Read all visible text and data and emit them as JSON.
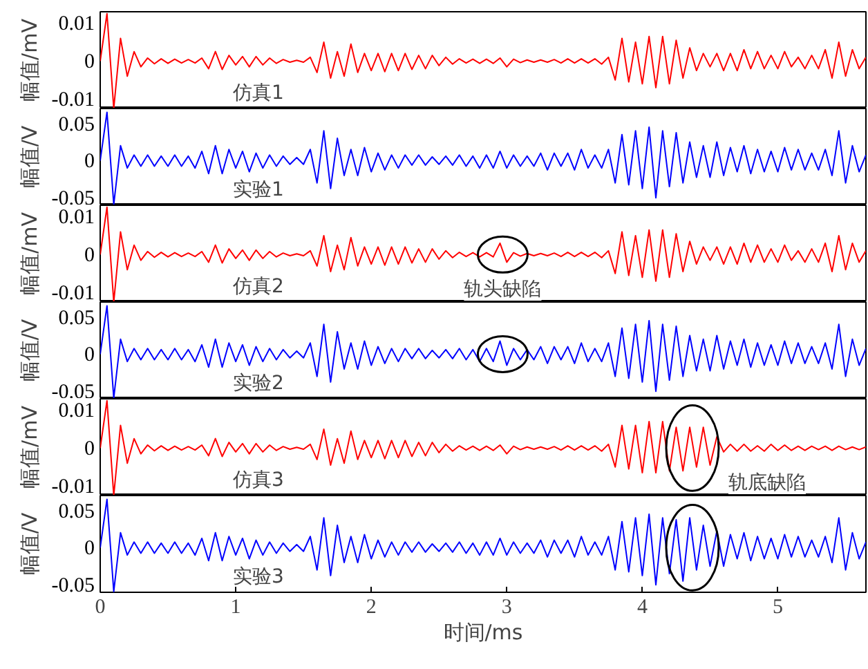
{
  "chart_data": [
    {
      "type": "line",
      "ylabel": "幅值/mV",
      "xlim": [
        0,
        5.65
      ],
      "ylim": [
        -0.0125,
        0.013
      ],
      "yticks": [
        -0.01,
        0,
        0.01
      ],
      "tick_labels": "y",
      "annotations": [
        "仿真1"
      ],
      "x": [
        0,
        0.05,
        0.1,
        0.15,
        0.2,
        0.25,
        0.3,
        0.35,
        0.4,
        0.45,
        0.5,
        0.55,
        0.6,
        0.65,
        0.7,
        0.75,
        0.8,
        0.85,
        0.9,
        0.95,
        1,
        1.05,
        1.1,
        1.15,
        1.2,
        1.25,
        1.3,
        1.35,
        1.4,
        1.45,
        1.5,
        1.55,
        1.6,
        1.65,
        1.7,
        1.75,
        1.8,
        1.85,
        1.9,
        1.95,
        2,
        2.05,
        2.1,
        2.15,
        2.2,
        2.25,
        2.3,
        2.35,
        2.4,
        2.45,
        2.5,
        2.55,
        2.6,
        2.65,
        2.7,
        2.75,
        2.8,
        2.85,
        2.9,
        2.95,
        3,
        3.05,
        3.1,
        3.15,
        3.2,
        3.25,
        3.3,
        3.35,
        3.4,
        3.45,
        3.5,
        3.55,
        3.6,
        3.65,
        3.7,
        3.75,
        3.8,
        3.85,
        3.9,
        3.95,
        4,
        4.05,
        4.1,
        4.15,
        4.2,
        4.25,
        4.3,
        4.35,
        4.4,
        4.45,
        4.5,
        4.55,
        4.6,
        4.65,
        4.7,
        4.75,
        4.8,
        4.85,
        4.9,
        4.95,
        5,
        5.05,
        5.1,
        5.15,
        5.2,
        5.25,
        5.3,
        5.35,
        5.4,
        5.45,
        5.5,
        5.55,
        5.6,
        5.65
      ],
      "series": [
        {
          "color": "#ff0000",
          "values": [
            0,
            0.0125,
            -0.0125,
            0.006,
            -0.004,
            0.0025,
            -0.0015,
            0.0008,
            -0.0007,
            0.0006,
            -0.0006,
            0.0005,
            -0.0005,
            0.0004,
            -0.0005,
            0.0008,
            -0.002,
            0.0025,
            -0.0022,
            0.0015,
            -0.001,
            0.0012,
            -0.0015,
            0.0012,
            -0.001,
            0.0008,
            -0.0006,
            0.0004,
            -0.0003,
            0.0002,
            -0.0003,
            0.001,
            -0.003,
            0.005,
            -0.0045,
            0.0025,
            -0.004,
            0.0045,
            -0.003,
            0.002,
            -0.0025,
            0.002,
            -0.0028,
            0.002,
            -0.0025,
            0.002,
            -0.0022,
            0.0015,
            -0.002,
            0.0015,
            -0.0012,
            0.001,
            -0.0008,
            0.0006,
            -0.0005,
            0.0005,
            -0.0006,
            0.0005,
            -0.0006,
            0.0008,
            -0.0015,
            0.0005,
            -0.0004,
            0.0003,
            -0.0003,
            0.0003,
            -0.0003,
            0.0004,
            -0.0005,
            0.0006,
            -0.0005,
            0.0006,
            -0.0005,
            0.0006,
            -0.0008,
            0.001,
            -0.005,
            0.006,
            -0.0055,
            0.005,
            -0.006,
            0.0065,
            -0.007,
            0.0065,
            -0.006,
            0.0055,
            -0.0045,
            0.0035,
            -0.0025,
            0.002,
            -0.0015,
            0.002,
            -0.0025,
            0.002,
            -0.0025,
            0.003,
            -0.002,
            0.0025,
            -0.002,
            0.0015,
            -0.002,
            0.0025,
            -0.0015,
            0.001,
            -0.002,
            0.0015,
            -0.002,
            0.003,
            -0.0045,
            0.005,
            -0.004,
            0.003,
            -0.002,
            0.001
          ]
        }
      ]
    },
    {
      "type": "line",
      "ylabel": "幅值/V",
      "xlim": [
        0,
        5.65
      ],
      "ylim": [
        -0.06,
        0.07
      ],
      "yticks": [
        -0.05,
        0,
        0.05
      ],
      "tick_labels": "y",
      "annotations": [
        "实验1"
      ],
      "x": [
        0,
        0.05,
        0.1,
        0.15,
        0.2,
        0.25,
        0.3,
        0.35,
        0.4,
        0.45,
        0.5,
        0.55,
        0.6,
        0.65,
        0.7,
        0.75,
        0.8,
        0.85,
        0.9,
        0.95,
        1,
        1.05,
        1.1,
        1.15,
        1.2,
        1.25,
        1.3,
        1.35,
        1.4,
        1.45,
        1.5,
        1.55,
        1.6,
        1.65,
        1.7,
        1.75,
        1.8,
        1.85,
        1.9,
        1.95,
        2,
        2.05,
        2.1,
        2.15,
        2.2,
        2.25,
        2.3,
        2.35,
        2.4,
        2.45,
        2.5,
        2.55,
        2.6,
        2.65,
        2.7,
        2.75,
        2.8,
        2.85,
        2.9,
        2.95,
        3,
        3.05,
        3.1,
        3.15,
        3.2,
        3.25,
        3.3,
        3.35,
        3.4,
        3.45,
        3.5,
        3.55,
        3.6,
        3.65,
        3.7,
        3.75,
        3.8,
        3.85,
        3.9,
        3.95,
        4,
        4.05,
        4.1,
        4.15,
        4.2,
        4.25,
        4.3,
        4.35,
        4.4,
        4.45,
        4.5,
        4.55,
        4.6,
        4.65,
        4.7,
        4.75,
        4.8,
        4.85,
        4.9,
        4.95,
        5,
        5.05,
        5.1,
        5.15,
        5.2,
        5.25,
        5.3,
        5.35,
        5.4,
        5.45,
        5.5,
        5.55,
        5.6,
        5.65
      ],
      "series": [
        {
          "color": "#0000ff",
          "values": [
            0,
            0.065,
            -0.059,
            0.02,
            -0.01,
            0.0075,
            -0.0075,
            0.0075,
            -0.0075,
            0.006,
            -0.0075,
            0.0075,
            -0.0075,
            0.006,
            -0.01,
            0.0125,
            -0.0175,
            0.02,
            -0.0175,
            0.015,
            -0.01,
            0.0125,
            -0.015,
            0.01,
            -0.01,
            0.0075,
            -0.0075,
            0.006,
            -0.005,
            0.004,
            -0.005,
            0.015,
            -0.03,
            0.04,
            -0.0375,
            0.03,
            -0.02,
            0.015,
            -0.02,
            0.0175,
            -0.015,
            0.01,
            -0.0125,
            0.0075,
            -0.01,
            0.0075,
            -0.006,
            0.0075,
            -0.006,
            0.005,
            -0.005,
            0.006,
            -0.006,
            0.0075,
            -0.0075,
            0.006,
            -0.01,
            0.0075,
            -0.01,
            0.0125,
            -0.01,
            0.0075,
            -0.0075,
            0.006,
            -0.0075,
            0.01,
            -0.0125,
            0.01,
            -0.0075,
            0.01,
            -0.0125,
            0.015,
            -0.01,
            0.0075,
            -0.01,
            0.015,
            -0.03,
            0.035,
            -0.0325,
            0.04,
            -0.0375,
            0.045,
            -0.05,
            0.04,
            -0.035,
            0.0375,
            -0.03,
            0.025,
            -0.0225,
            0.02,
            -0.0225,
            0.025,
            -0.02,
            0.0175,
            -0.015,
            0.02,
            -0.0175,
            0.015,
            -0.015,
            0.0125,
            -0.015,
            0.0175,
            -0.0125,
            0.015,
            -0.0125,
            0.01,
            -0.0125,
            0.015,
            -0.02,
            0.04,
            -0.03,
            0.02,
            -0.015,
            0.0075
          ]
        }
      ]
    },
    {
      "type": "line",
      "ylabel": "幅值/mV",
      "xlim": [
        0,
        5.65
      ],
      "ylim": [
        -0.0125,
        0.013
      ],
      "yticks": [
        -0.01,
        0,
        0.01
      ],
      "tick_labels": "y",
      "annotations": [
        "仿真2",
        {
          "text": "轨头缺陷",
          "x": 2.97,
          "y": 0
        }
      ],
      "x": [
        0,
        0.05,
        0.1,
        0.15,
        0.2,
        0.25,
        0.3,
        0.35,
        0.4,
        0.45,
        0.5,
        0.55,
        0.6,
        0.65,
        0.7,
        0.75,
        0.8,
        0.85,
        0.9,
        0.95,
        1,
        1.05,
        1.1,
        1.15,
        1.2,
        1.25,
        1.3,
        1.35,
        1.4,
        1.45,
        1.5,
        1.55,
        1.6,
        1.65,
        1.7,
        1.75,
        1.8,
        1.85,
        1.9,
        1.95,
        2,
        2.05,
        2.1,
        2.15,
        2.2,
        2.25,
        2.3,
        2.35,
        2.4,
        2.45,
        2.5,
        2.55,
        2.6,
        2.65,
        2.7,
        2.75,
        2.8,
        2.85,
        2.9,
        2.95,
        3,
        3.05,
        3.1,
        3.15,
        3.2,
        3.25,
        3.3,
        3.35,
        3.4,
        3.45,
        3.5,
        3.55,
        3.6,
        3.65,
        3.7,
        3.75,
        3.8,
        3.85,
        3.9,
        3.95,
        4,
        4.05,
        4.1,
        4.15,
        4.2,
        4.25,
        4.3,
        4.35,
        4.4,
        4.45,
        4.5,
        4.55,
        4.6,
        4.65,
        4.7,
        4.75,
        4.8,
        4.85,
        4.9,
        4.95,
        5,
        5.05,
        5.1,
        5.15,
        5.2,
        5.25,
        5.3,
        5.35,
        5.4,
        5.45,
        5.5,
        5.55,
        5.6,
        5.65
      ],
      "series": [
        {
          "color": "#ff0000",
          "values": [
            0,
            0.0125,
            -0.0125,
            0.006,
            -0.004,
            0.0025,
            -0.0015,
            0.0008,
            -0.0007,
            0.0006,
            -0.0006,
            0.0005,
            -0.0005,
            0.0004,
            -0.0005,
            0.0008,
            -0.002,
            0.0025,
            -0.0022,
            0.0015,
            -0.001,
            0.0012,
            -0.0015,
            0.0012,
            -0.001,
            0.0008,
            -0.0006,
            0.0004,
            -0.0003,
            0.0002,
            -0.0003,
            0.001,
            -0.003,
            0.005,
            -0.0045,
            0.0025,
            -0.004,
            0.0045,
            -0.003,
            0.002,
            -0.0025,
            0.002,
            -0.0028,
            0.002,
            -0.0025,
            0.002,
            -0.0022,
            0.0015,
            -0.002,
            0.0015,
            -0.0012,
            0.001,
            -0.0008,
            0.0006,
            -0.0005,
            0.0005,
            -0.0006,
            0.0005,
            -0.0006,
            0.003,
            -0.002,
            0.0005,
            -0.0004,
            0.0003,
            -0.0003,
            0.0003,
            -0.0003,
            0.0004,
            -0.0005,
            0.0006,
            -0.0005,
            0.0006,
            -0.0005,
            0.0006,
            -0.0008,
            0.001,
            -0.005,
            0.006,
            -0.0055,
            0.005,
            -0.006,
            0.0065,
            -0.007,
            0.0065,
            -0.006,
            0.0055,
            -0.0045,
            0.0035,
            -0.0025,
            0.002,
            -0.0015,
            0.002,
            -0.0025,
            0.002,
            -0.0025,
            0.003,
            -0.002,
            0.0025,
            -0.002,
            0.0015,
            -0.002,
            0.0025,
            -0.0015,
            0.001,
            -0.002,
            0.0015,
            -0.002,
            0.003,
            -0.0045,
            0.005,
            -0.004,
            0.003,
            -0.002,
            0.001
          ]
        }
      ]
    },
    {
      "type": "line",
      "ylabel": "幅值/V",
      "xlim": [
        0,
        5.65
      ],
      "ylim": [
        -0.06,
        0.07
      ],
      "yticks": [
        -0.05,
        0,
        0.05
      ],
      "tick_labels": "y",
      "annotations": [
        "实验2"
      ],
      "x": [
        0,
        0.05,
        0.1,
        0.15,
        0.2,
        0.25,
        0.3,
        0.35,
        0.4,
        0.45,
        0.5,
        0.55,
        0.6,
        0.65,
        0.7,
        0.75,
        0.8,
        0.85,
        0.9,
        0.95,
        1,
        1.05,
        1.1,
        1.15,
        1.2,
        1.25,
        1.3,
        1.35,
        1.4,
        1.45,
        1.5,
        1.55,
        1.6,
        1.65,
        1.7,
        1.75,
        1.8,
        1.85,
        1.9,
        1.95,
        2,
        2.05,
        2.1,
        2.15,
        2.2,
        2.25,
        2.3,
        2.35,
        2.4,
        2.45,
        2.5,
        2.55,
        2.6,
        2.65,
        2.7,
        2.75,
        2.8,
        2.85,
        2.9,
        2.95,
        3,
        3.05,
        3.1,
        3.15,
        3.2,
        3.25,
        3.3,
        3.35,
        3.4,
        3.45,
        3.5,
        3.55,
        3.6,
        3.65,
        3.7,
        3.75,
        3.8,
        3.85,
        3.9,
        3.95,
        4,
        4.05,
        4.1,
        4.15,
        4.2,
        4.25,
        4.3,
        4.35,
        4.4,
        4.45,
        4.5,
        4.55,
        4.6,
        4.65,
        4.7,
        4.75,
        4.8,
        4.85,
        4.9,
        4.95,
        5,
        5.05,
        5.1,
        5.15,
        5.2,
        5.25,
        5.3,
        5.35,
        5.4,
        5.45,
        5.5,
        5.55,
        5.6,
        5.65
      ],
      "series": [
        {
          "color": "#0000ff",
          "values": [
            0,
            0.065,
            -0.059,
            0.02,
            -0.01,
            0.0075,
            -0.0075,
            0.0075,
            -0.0075,
            0.006,
            -0.0075,
            0.0075,
            -0.0075,
            0.006,
            -0.01,
            0.0125,
            -0.0175,
            0.02,
            -0.0175,
            0.015,
            -0.01,
            0.0125,
            -0.015,
            0.01,
            -0.01,
            0.0075,
            -0.0075,
            0.006,
            -0.005,
            0.004,
            -0.005,
            0.015,
            -0.03,
            0.04,
            -0.0375,
            0.03,
            -0.02,
            0.015,
            -0.02,
            0.0175,
            -0.015,
            0.01,
            -0.0125,
            0.0075,
            -0.01,
            0.0075,
            -0.006,
            0.0075,
            -0.006,
            0.005,
            -0.005,
            0.006,
            -0.006,
            0.0075,
            -0.0075,
            0.006,
            -0.01,
            0.0075,
            -0.01,
            0.0175,
            -0.015,
            0.0075,
            -0.0075,
            0.006,
            -0.0075,
            0.01,
            -0.0125,
            0.01,
            -0.0075,
            0.01,
            -0.0125,
            0.015,
            -0.01,
            0.0075,
            -0.01,
            0.015,
            -0.03,
            0.035,
            -0.0325,
            0.04,
            -0.0375,
            0.045,
            -0.05,
            0.04,
            -0.035,
            0.0375,
            -0.03,
            0.025,
            -0.0225,
            0.02,
            -0.0225,
            0.025,
            -0.02,
            0.0175,
            -0.015,
            0.02,
            -0.0175,
            0.015,
            -0.015,
            0.0125,
            -0.015,
            0.0175,
            -0.0125,
            0.015,
            -0.0125,
            0.01,
            -0.0125,
            0.015,
            -0.02,
            0.04,
            -0.03,
            0.02,
            -0.015,
            0.0075
          ]
        }
      ]
    },
    {
      "type": "line",
      "ylabel": "幅值/mV",
      "xlim": [
        0,
        5.65
      ],
      "ylim": [
        -0.0125,
        0.013
      ],
      "yticks": [
        -0.01,
        0,
        0.01
      ],
      "tick_labels": "y",
      "annotations": [
        "仿真3",
        {
          "text": "轨底缺陷",
          "x": 4.37,
          "y": 0
        }
      ],
      "x": [
        0,
        0.05,
        0.1,
        0.15,
        0.2,
        0.25,
        0.3,
        0.35,
        0.4,
        0.45,
        0.5,
        0.55,
        0.6,
        0.65,
        0.7,
        0.75,
        0.8,
        0.85,
        0.9,
        0.95,
        1,
        1.05,
        1.1,
        1.15,
        1.2,
        1.25,
        1.3,
        1.35,
        1.4,
        1.45,
        1.5,
        1.55,
        1.6,
        1.65,
        1.7,
        1.75,
        1.8,
        1.85,
        1.9,
        1.95,
        2,
        2.05,
        2.1,
        2.15,
        2.2,
        2.25,
        2.3,
        2.35,
        2.4,
        2.45,
        2.5,
        2.55,
        2.6,
        2.65,
        2.7,
        2.75,
        2.8,
        2.85,
        2.9,
        2.95,
        3,
        3.05,
        3.1,
        3.15,
        3.2,
        3.25,
        3.3,
        3.35,
        3.4,
        3.45,
        3.5,
        3.55,
        3.6,
        3.65,
        3.7,
        3.75,
        3.8,
        3.85,
        3.9,
        3.95,
        4,
        4.05,
        4.1,
        4.15,
        4.2,
        4.25,
        4.3,
        4.35,
        4.4,
        4.45,
        4.5,
        4.55,
        4.6,
        4.65,
        4.7,
        4.75,
        4.8,
        4.85,
        4.9,
        4.95,
        5,
        5.05,
        5.1,
        5.15,
        5.2,
        5.25,
        5.3,
        5.35,
        5.4,
        5.45,
        5.5,
        5.55,
        5.6,
        5.65
      ],
      "series": [
        {
          "color": "#ff0000",
          "values": [
            0,
            0.0125,
            -0.0125,
            0.006,
            -0.004,
            0.0025,
            -0.0015,
            0.0008,
            -0.0007,
            0.0006,
            -0.0006,
            0.0005,
            -0.0005,
            0.0004,
            -0.0005,
            0.0008,
            -0.002,
            0.0025,
            -0.0022,
            0.0015,
            -0.001,
            0.0012,
            -0.0015,
            0.0012,
            -0.001,
            0.0008,
            -0.0006,
            0.0004,
            -0.0003,
            0.0002,
            -0.0003,
            0.001,
            -0.003,
            0.005,
            -0.0045,
            0.0025,
            -0.004,
            0.0045,
            -0.003,
            0.002,
            -0.0025,
            0.002,
            -0.0028,
            0.002,
            -0.0025,
            0.002,
            -0.0022,
            0.0015,
            -0.002,
            0.0015,
            -0.0012,
            0.001,
            -0.0008,
            0.0006,
            -0.0005,
            0.0005,
            -0.0006,
            0.0005,
            -0.0006,
            0.0008,
            -0.0015,
            0.0005,
            -0.0004,
            0.0003,
            -0.0003,
            0.0003,
            -0.0003,
            0.0004,
            -0.0005,
            0.0006,
            -0.0005,
            0.0006,
            -0.0005,
            0.0006,
            -0.0008,
            0.001,
            -0.005,
            0.006,
            -0.0055,
            0.006,
            -0.0065,
            0.007,
            -0.0065,
            0.007,
            -0.006,
            0.0055,
            -0.006,
            0.0055,
            -0.005,
            0.0055,
            -0.0045,
            0.003,
            -0.001,
            0.001,
            -0.0008,
            0.001,
            -0.0008,
            0.0006,
            -0.0008,
            0.001,
            -0.0006,
            0.0008,
            -0.0006,
            0.0005,
            -0.0006,
            0.0005,
            -0.0004,
            0.0005,
            -0.0006,
            0.0005,
            -0.0004,
            0.0003,
            -0.0004,
            0.0003
          ]
        }
      ]
    },
    {
      "type": "line",
      "ylabel": "幅值/V",
      "xlabel": "时间/ms",
      "xlim": [
        0,
        5.65
      ],
      "xticks": [
        0,
        1,
        2,
        3,
        4,
        5
      ],
      "ylim": [
        -0.06,
        0.07
      ],
      "yticks": [
        -0.05,
        0,
        0.05
      ],
      "annotations": [
        "实验3"
      ],
      "x": [
        0,
        0.05,
        0.1,
        0.15,
        0.2,
        0.25,
        0.3,
        0.35,
        0.4,
        0.45,
        0.5,
        0.55,
        0.6,
        0.65,
        0.7,
        0.75,
        0.8,
        0.85,
        0.9,
        0.95,
        1,
        1.05,
        1.1,
        1.15,
        1.2,
        1.25,
        1.3,
        1.35,
        1.4,
        1.45,
        1.5,
        1.55,
        1.6,
        1.65,
        1.7,
        1.75,
        1.8,
        1.85,
        1.9,
        1.95,
        2,
        2.05,
        2.1,
        2.15,
        2.2,
        2.25,
        2.3,
        2.35,
        2.4,
        2.45,
        2.5,
        2.55,
        2.6,
        2.65,
        2.7,
        2.75,
        2.8,
        2.85,
        2.9,
        2.95,
        3,
        3.05,
        3.1,
        3.15,
        3.2,
        3.25,
        3.3,
        3.35,
        3.4,
        3.45,
        3.5,
        3.55,
        3.6,
        3.65,
        3.7,
        3.75,
        3.8,
        3.85,
        3.9,
        3.95,
        4,
        4.05,
        4.1,
        4.15,
        4.2,
        4.25,
        4.3,
        4.35,
        4.4,
        4.45,
        4.5,
        4.55,
        4.6,
        4.65,
        4.7,
        4.75,
        4.8,
        4.85,
        4.9,
        4.95,
        5,
        5.05,
        5.1,
        5.15,
        5.2,
        5.25,
        5.3,
        5.35,
        5.4,
        5.45,
        5.5,
        5.55,
        5.6,
        5.65
      ],
      "series": [
        {
          "color": "#0000ff",
          "values": [
            0,
            0.065,
            -0.059,
            0.02,
            -0.01,
            0.0075,
            -0.0075,
            0.0075,
            -0.0075,
            0.006,
            -0.0075,
            0.0075,
            -0.0075,
            0.006,
            -0.01,
            0.0125,
            -0.0175,
            0.02,
            -0.0175,
            0.015,
            -0.01,
            0.0125,
            -0.015,
            0.01,
            -0.01,
            0.0075,
            -0.0075,
            0.006,
            -0.005,
            0.004,
            -0.005,
            0.015,
            -0.03,
            0.04,
            -0.0375,
            0.03,
            -0.02,
            0.015,
            -0.02,
            0.0175,
            -0.015,
            0.01,
            -0.0125,
            0.0075,
            -0.01,
            0.0075,
            -0.006,
            0.0075,
            -0.006,
            0.005,
            -0.005,
            0.006,
            -0.006,
            0.0075,
            -0.0075,
            0.006,
            -0.01,
            0.0075,
            -0.01,
            0.0125,
            -0.01,
            0.0075,
            -0.0075,
            0.006,
            -0.0075,
            0.01,
            -0.0125,
            0.01,
            -0.0075,
            0.01,
            -0.0125,
            0.015,
            -0.01,
            0.0075,
            -0.01,
            0.015,
            -0.03,
            0.035,
            -0.0325,
            0.04,
            -0.0375,
            0.045,
            -0.05,
            0.04,
            -0.035,
            0.0375,
            -0.045,
            0.04,
            -0.03,
            0.03,
            -0.025,
            0.0225,
            -0.025,
            0.0175,
            -0.015,
            0.02,
            -0.0175,
            0.015,
            -0.015,
            0.0125,
            -0.015,
            0.0175,
            -0.0125,
            0.015,
            -0.0125,
            0.01,
            -0.0125,
            0.015,
            -0.02,
            0.04,
            -0.03,
            0.02,
            -0.015,
            0.0075
          ]
        }
      ]
    }
  ]
}
